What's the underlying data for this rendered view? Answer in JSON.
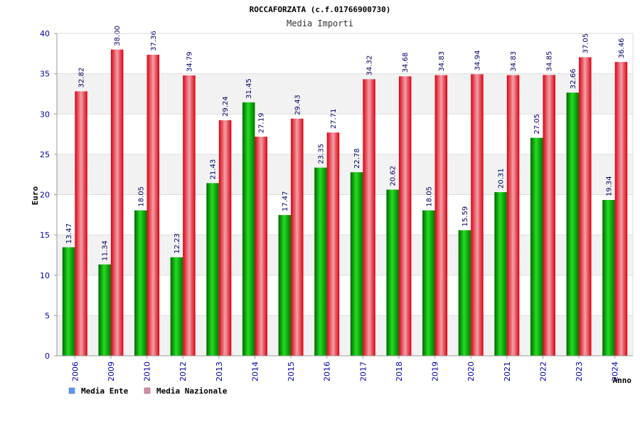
{
  "chart_data": {
    "type": "bar",
    "title": "ROCCAFORZATA (c.f.01766900730)",
    "subtitle": "Media Importi",
    "ylabel": "Euro",
    "xlabel": "Anno",
    "ylim": [
      0,
      40
    ],
    "yticks": [
      0,
      5,
      10,
      15,
      20,
      25,
      30,
      35,
      40
    ],
    "grid": true,
    "legend_position": "bottom-left",
    "categories": [
      "2006",
      "2009",
      "2010",
      "2012",
      "2013",
      "2014",
      "2015",
      "2016",
      "2017",
      "2018",
      "2019",
      "2020",
      "2021",
      "2022",
      "2023",
      "2024"
    ],
    "series": [
      {
        "name": "Media Ente",
        "color": "#00aa00",
        "legend_color": "#5599ff",
        "values": [
          13.47,
          11.34,
          18.05,
          12.23,
          21.43,
          31.45,
          17.47,
          23.35,
          22.78,
          20.62,
          18.05,
          15.59,
          20.31,
          27.05,
          32.66,
          19.34
        ],
        "labels": [
          "13.47",
          "11.34",
          "18.05",
          "12.23",
          "21.43",
          "31.45",
          "17.47",
          "23.35",
          "22.78",
          "20.62",
          "18.05",
          "15.59",
          "20.31",
          "27.05",
          "32.66",
          "19.34"
        ]
      },
      {
        "name": "Media Nazionale",
        "color": "#ee1122",
        "legend_color": "#dd88aa",
        "values": [
          32.82,
          38.0,
          37.36,
          34.79,
          29.24,
          27.19,
          29.43,
          27.71,
          34.32,
          34.68,
          34.83,
          34.94,
          34.83,
          34.85,
          37.05,
          36.46
        ],
        "labels": [
          "32.82",
          "38.00",
          "37.36",
          "34.79",
          "29.24",
          "27.19",
          "29.43",
          "27.71",
          "34.32",
          "34.68",
          "34.83",
          "34.94",
          "34.83",
          "34.85",
          "37.05",
          "36.46"
        ]
      }
    ]
  }
}
